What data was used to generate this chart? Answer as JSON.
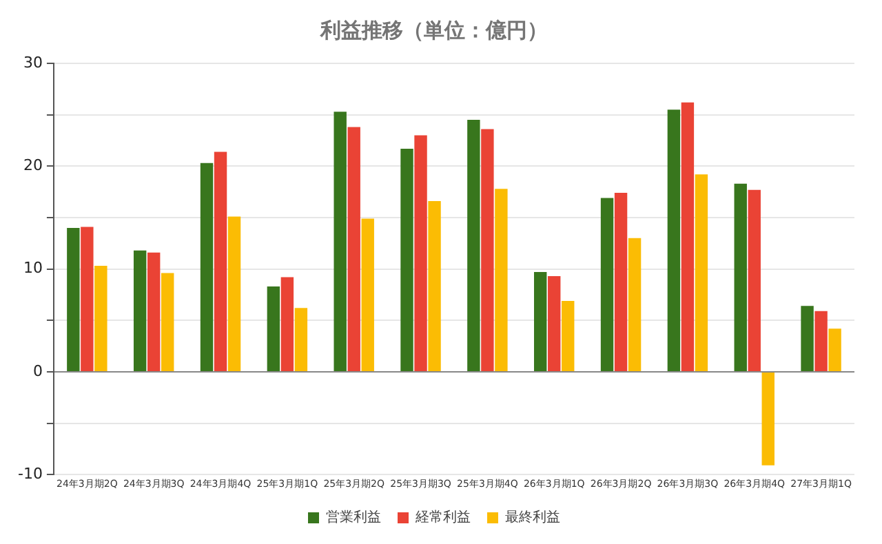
{
  "chart_data": {
    "type": "bar",
    "title": "利益推移（単位：億円）",
    "categories": [
      "24年3月期2Q",
      "24年3月期3Q",
      "24年3月期4Q",
      "25年3月期1Q",
      "25年3月期2Q",
      "25年3月期3Q",
      "25年3月期4Q",
      "26年3月期1Q",
      "26年3月期2Q",
      "26年3月期3Q",
      "26年3月期4Q",
      "27年3月期1Q"
    ],
    "series": [
      {
        "name": "営業利益",
        "color": "#38761d",
        "values": [
          14.0,
          11.8,
          20.3,
          8.3,
          25.3,
          21.7,
          24.5,
          9.7,
          16.9,
          25.5,
          18.3,
          6.4
        ]
      },
      {
        "name": "経常利益",
        "color": "#ea4335",
        "values": [
          14.1,
          11.6,
          21.4,
          9.2,
          23.8,
          23.0,
          23.6,
          9.3,
          17.4,
          26.2,
          17.7,
          5.9
        ]
      },
      {
        "name": "最終利益",
        "color": "#fbbc04",
        "values": [
          10.3,
          9.6,
          15.1,
          6.2,
          14.9,
          16.6,
          17.8,
          6.9,
          13.0,
          19.2,
          -9.1,
          4.2
        ]
      }
    ],
    "ylim": [
      -10,
      30
    ],
    "yticks": [
      -10,
      {
        "value": -5,
        "label": null
      },
      0,
      {
        "value": 5,
        "label": null
      },
      10,
      {
        "value": 15,
        "label": null
      },
      20,
      {
        "value": 25,
        "label": null
      },
      30
    ],
    "grid": "y",
    "legend": "bottom"
  }
}
